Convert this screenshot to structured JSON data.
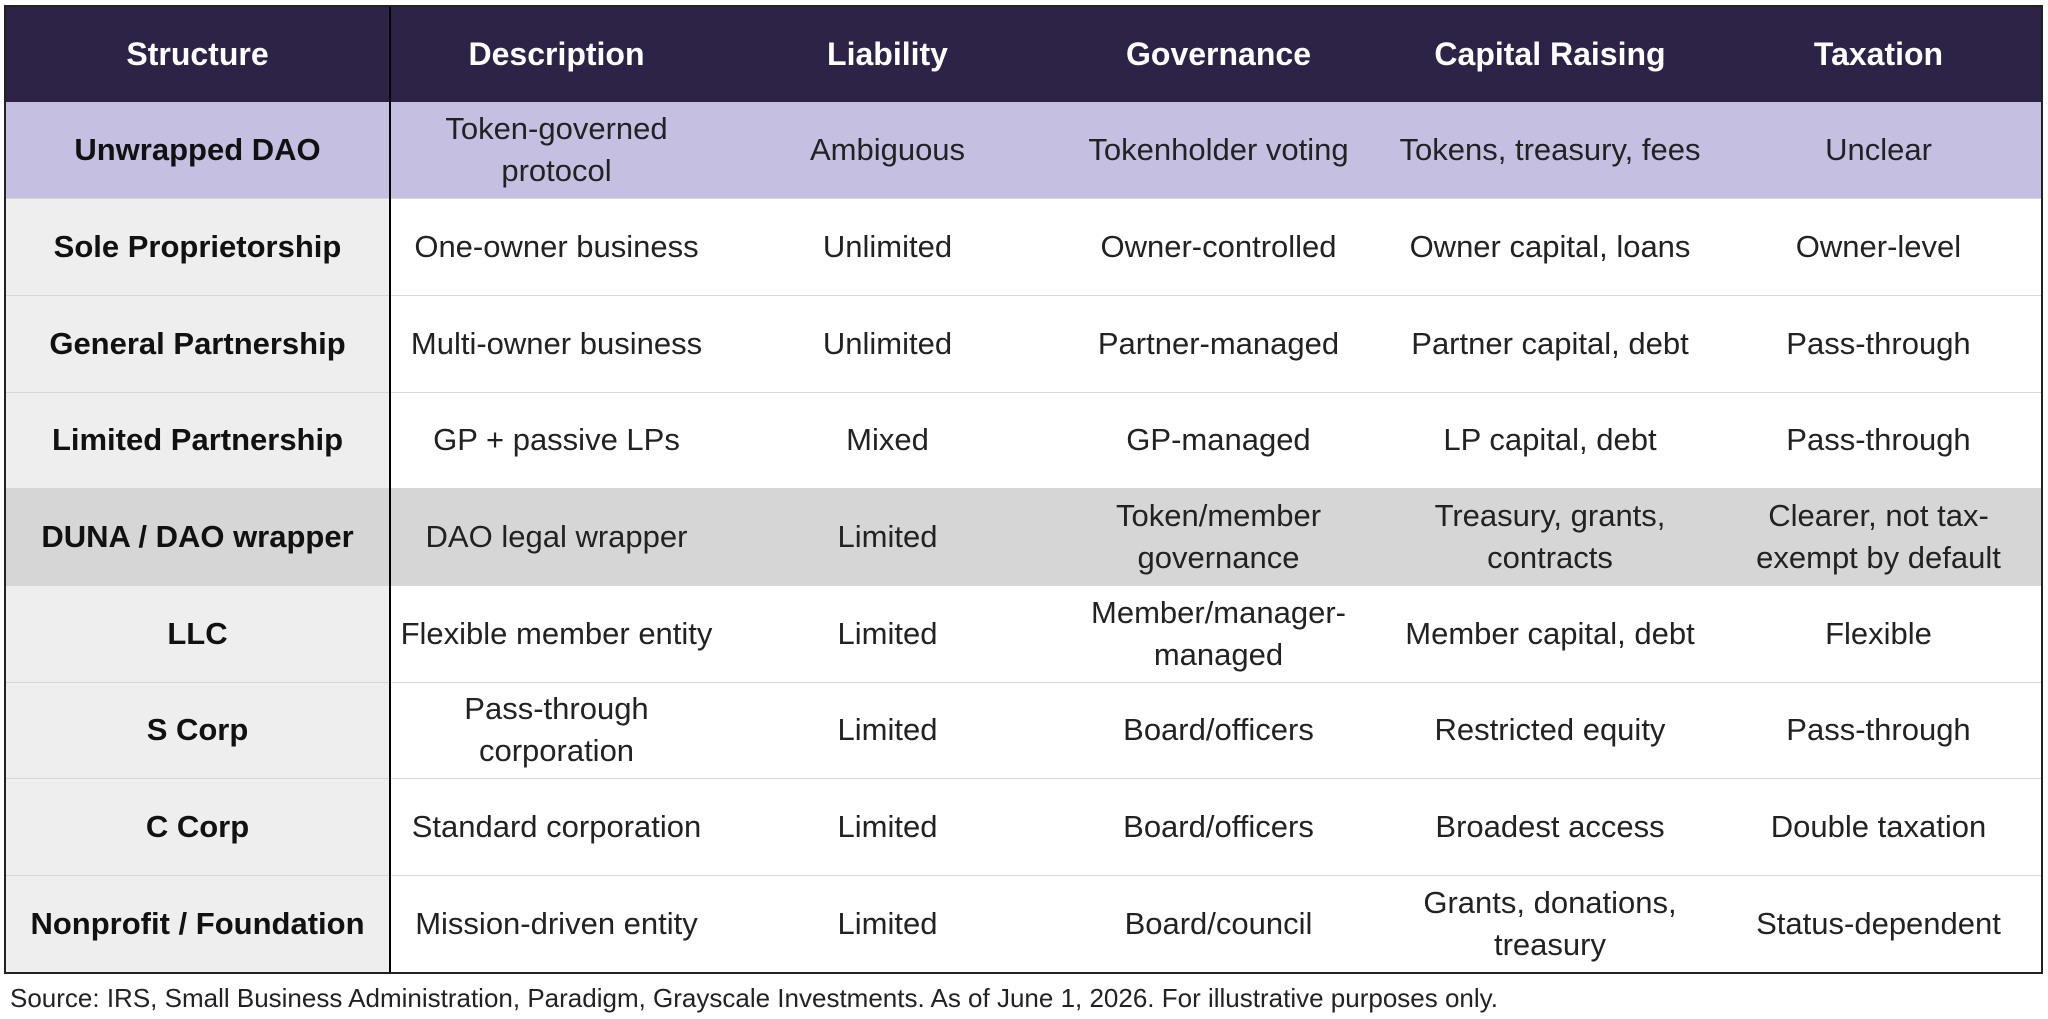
{
  "table": {
    "headers": {
      "structure": "Structure",
      "description": "Description",
      "liability": "Liability",
      "governance": "Governance",
      "capital": "Capital Raising",
      "taxation": "Taxation"
    },
    "rows": [
      {
        "structure": "Unwrapped DAO",
        "description": "Token-governed protocol",
        "liability": "Ambiguous",
        "governance": "Tokenholder voting",
        "capital": "Tokens, treasury, fees",
        "taxation": "Unclear"
      },
      {
        "structure": "Sole Proprietorship",
        "description": "One-owner business",
        "liability": "Unlimited",
        "governance": "Owner-controlled",
        "capital": "Owner capital, loans",
        "taxation": "Owner-level"
      },
      {
        "structure": "General Partnership",
        "description": "Multi-owner business",
        "liability": "Unlimited",
        "governance": "Partner-managed",
        "capital": "Partner capital, debt",
        "taxation": "Pass-through"
      },
      {
        "structure": "Limited Partnership",
        "description": "GP + passive LPs",
        "liability": "Mixed",
        "governance": "GP-managed",
        "capital": "LP capital, debt",
        "taxation": "Pass-through"
      },
      {
        "structure": "DUNA / DAO wrapper",
        "description": "DAO legal wrapper",
        "liability": "Limited",
        "governance": "Token/member governance",
        "capital": "Treasury, grants, contracts",
        "taxation": "Clearer, not tax-exempt by default"
      },
      {
        "structure": "LLC",
        "description": "Flexible member entity",
        "liability": "Limited",
        "governance": "Member/manager-managed",
        "capital": "Member capital, debt",
        "taxation": "Flexible"
      },
      {
        "structure": "S Corp",
        "description": "Pass-through corporation",
        "liability": "Limited",
        "governance": "Board/officers",
        "capital": "Restricted equity",
        "taxation": "Pass-through"
      },
      {
        "structure": "C Corp",
        "description": "Standard corporation",
        "liability": "Limited",
        "governance": "Board/officers",
        "capital": "Broadest access",
        "taxation": "Double taxation"
      },
      {
        "structure": "Nonprofit / Foundation",
        "description": "Mission-driven entity",
        "liability": "Limited",
        "governance": "Board/council",
        "capital": "Grants, donations, treasury",
        "taxation": "Status-dependent"
      }
    ]
  },
  "source": "Source: IRS, Small Business Administration, Paradigm, Grayscale Investments. As of June 1, 2026. For illustrative purposes only.",
  "colors": {
    "header_bg": "#2c2347",
    "header_text": "#ffffff",
    "highlight_dao": "#c5c0e2",
    "highlight_duna": "#d6d6d6",
    "structure_col_bg": "#eeeeee"
  }
}
